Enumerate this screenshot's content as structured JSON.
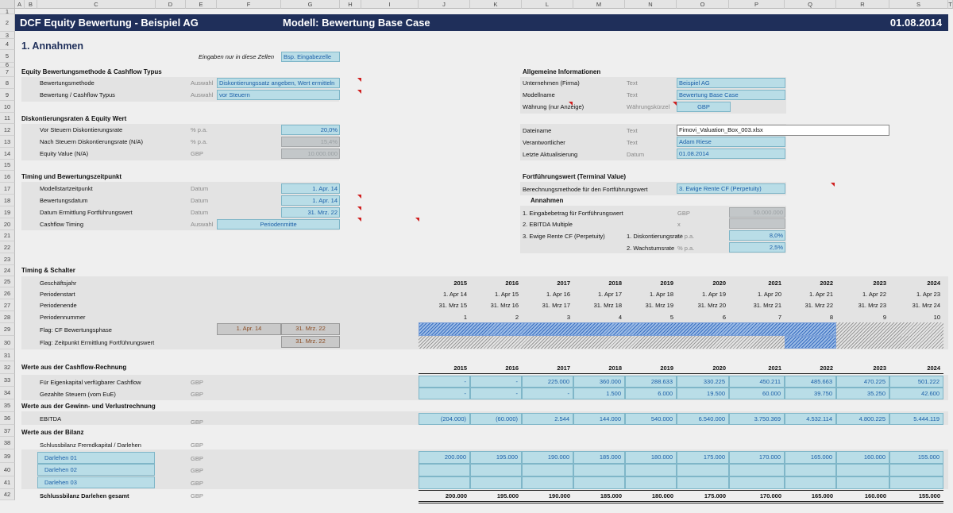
{
  "columns": [
    "A",
    "B",
    "C",
    "D",
    "E",
    "F",
    "G",
    "H",
    "I",
    "J",
    "K",
    "L",
    "M",
    "N",
    "O",
    "P",
    "Q",
    "R",
    "S",
    "T"
  ],
  "rows": [
    "1",
    "2",
    "3",
    "4",
    "5",
    "6",
    "7",
    "8",
    "9",
    "10",
    "11",
    "12",
    "13",
    "14",
    "15",
    "16",
    "17",
    "18",
    "19",
    "20",
    "21",
    "22",
    "23",
    "24",
    "25",
    "26",
    "27",
    "28",
    "29",
    "30",
    "31",
    "32",
    "33",
    "34",
    "35",
    "36",
    "37",
    "38",
    "39",
    "40",
    "41",
    "42"
  ],
  "header": {
    "title": "DCF Equity Bewertung -  Beispiel AG",
    "model": "Modell: Bewertung Base Case",
    "date": "01.08.2014"
  },
  "annahmen": {
    "title": "1. Annahmen",
    "note": "Eingaben nur in diese Zellen",
    "note_example": "Bsp. Eingabezelle",
    "equity": {
      "title": "Equity Bewertungsmethode  & Cashflow Typus",
      "rows": [
        {
          "label": "Bewertungsmethode",
          "type": "Auswahl",
          "value": "Diskontierungssatz angeben, Wert ermitteln"
        },
        {
          "label": "Bewertung  / Cashflow Typus",
          "type": "Auswahl",
          "value": "vor Steuern"
        }
      ]
    },
    "diskont": {
      "title": "Diskontierungsraten & Equity Wert",
      "rows": [
        {
          "label": "Vor Steuern Diskontierungsrate",
          "unit": "% p.a.",
          "value": "20,0%"
        },
        {
          "label": "Nach Steuern Diskontierungsrate  (N/A)",
          "unit": "% p.a.",
          "value": "15,4%"
        },
        {
          "label": "Equity Value (N/A)",
          "unit": "GBP",
          "value": "10.000.000"
        }
      ]
    },
    "timing": {
      "title": "Timing und Bewertungszeitpunkt",
      "rows": [
        {
          "label": "Modellstartzeitpunkt",
          "unit": "Datum",
          "value": "1. Apr. 14"
        },
        {
          "label": "Bewertungsdatum",
          "unit": "Datum",
          "value": "1. Apr. 14"
        },
        {
          "label": "Datum Ermittlung Fortführungswert",
          "unit": "Datum",
          "value": "31. Mrz. 22"
        },
        {
          "label": "Cashflow Timing",
          "unit": "Auswahl",
          "value": "Periodenmitte"
        }
      ]
    },
    "allgemein": {
      "title": "Allgemeine Informationen",
      "rows": [
        {
          "label": "Unternehmen (Firma)",
          "type": "Text",
          "value": "Beispiel AG"
        },
        {
          "label": "Modellname",
          "type": "Text",
          "value": "Bewertung Base Case"
        },
        {
          "label": "Währung (nur Anzeige)",
          "type": "Währungskürzel",
          "value": "GBP"
        }
      ],
      "rows2": [
        {
          "label": "Dateiname",
          "type": "Text",
          "value": "Fimovi_Valuation_Box_003.xlsx"
        },
        {
          "label": "Verantwortlicher",
          "type": "Text",
          "value": "Adam Riese"
        },
        {
          "label": "Letzte Aktualisierung",
          "type": "Datum",
          "value": "01.08.2014"
        }
      ]
    },
    "terminal": {
      "title": "Fortführungswert (Terminal Value)",
      "method_label": "Berechnungsmethode für den Fortführungswert",
      "method_value": "3. Ewige Rente CF (Perpetuity)",
      "annahmen_label": "Annahmen",
      "r1_label": "1. Eingabebetrag für Fortführungswert",
      "r1_unit": "GBP",
      "r1_value": "50.000.000",
      "r2_label": "2. EBITDA Multiple",
      "r2_unit": "x",
      "r3_label": "3. Ewige Rente CF (Perpetuity)",
      "r3a_label": "1. Diskontierungsrate",
      "r3a_unit": "% p.a.",
      "r3a_value": "8,0%",
      "r3b_label": "2. Wachstumsrate",
      "r3b_unit": "% p.a.",
      "r3b_value": "2,5%"
    }
  },
  "timingschalter": {
    "title": "Timing & Schalter",
    "labels": {
      "year": "Geschäftsjahr",
      "start": "Periodenstart",
      "end": "Periodenende",
      "num": "Periodennummer",
      "flag1": "Flag: CF Bewertungsphase",
      "flag2": "Flag: Zeitpunkt Ermittlung Fortführungswert"
    },
    "flag1_start": "1. Apr. 14",
    "flag1_end": "31. Mrz. 22",
    "flag2_date": "31. Mrz. 22",
    "years": [
      "2015",
      "2016",
      "2017",
      "2018",
      "2019",
      "2020",
      "2021",
      "2022",
      "2023",
      "2024"
    ],
    "starts": [
      "1. Apr 14",
      "1. Apr 15",
      "1. Apr 16",
      "1. Apr 17",
      "1. Apr 18",
      "1. Apr 19",
      "1. Apr 20",
      "1. Apr 21",
      "1. Apr 22",
      "1. Apr 23"
    ],
    "ends": [
      "31. Mrz 15",
      "31. Mrz 16",
      "31. Mrz 17",
      "31. Mrz 18",
      "31. Mrz 19",
      "31. Mrz 20",
      "31. Mrz 21",
      "31. Mrz 22",
      "31. Mrz 23",
      "31. Mrz 24"
    ],
    "nums": [
      "1",
      "2",
      "3",
      "4",
      "5",
      "6",
      "7",
      "8",
      "9",
      "10"
    ],
    "flag1_active_periods": 8,
    "flag2_active_period": 8
  },
  "cashflow": {
    "title": "Werte aus der Cashflow-Rechnung",
    "years": [
      "2015",
      "2016",
      "2017",
      "2018",
      "2019",
      "2020",
      "2021",
      "2022",
      "2023",
      "2024"
    ],
    "rows": [
      {
        "label": "Für Eigenkapital verfügbarer Cashflow",
        "unit": "GBP",
        "values": [
          "-",
          "-",
          "225.000",
          "360.000",
          "288.633",
          "330.225",
          "450.211",
          "485.663",
          "470.225",
          "501.222"
        ]
      },
      {
        "label": "Gezahlte Steuern (vom EuE)",
        "unit": "GBP",
        "values": [
          "-",
          "-",
          "-",
          "1.500",
          "6.000",
          "19.500",
          "60.000",
          "39.750",
          "35.250",
          "42.600"
        ]
      }
    ]
  },
  "guv": {
    "title": "Werte aus der Gewinn- und Verlustrechnung",
    "label": "EBITDA",
    "unit": "GBP",
    "values": [
      "(204.000)",
      "(60.000)",
      "2.544",
      "144.000",
      "540.000",
      "6.540.000",
      "3.750.369",
      "4.532.114",
      "4.800.225",
      "5.444.119"
    ]
  },
  "bilanz": {
    "title": "Werte aus der Bilanz",
    "subtitle": "Schlussbilanz Fremdkapital / Darlehen",
    "subunit": "GBP",
    "rows": [
      {
        "label": "Darlehen 01",
        "unit": "GBP",
        "values": [
          "200.000",
          "195.000",
          "190.000",
          "185.000",
          "180.000",
          "175.000",
          "170.000",
          "165.000",
          "160.000",
          "155.000"
        ]
      },
      {
        "label": "Darlehen 02",
        "unit": "GBP",
        "values": [
          "",
          "",
          "",
          "",
          "",
          "",
          "",
          "",
          "",
          ""
        ]
      },
      {
        "label": "Darlehen 03",
        "unit": "GBP",
        "values": [
          "",
          "",
          "",
          "",
          "",
          "",
          "",
          "",
          "",
          ""
        ]
      }
    ],
    "total_label": "Schlussbilanz Darlehen gesamt",
    "total_unit": "GBP",
    "total_values": [
      "200.000",
      "195.000",
      "190.000",
      "185.000",
      "180.000",
      "175.000",
      "170.000",
      "165.000",
      "160.000",
      "155.000"
    ]
  }
}
